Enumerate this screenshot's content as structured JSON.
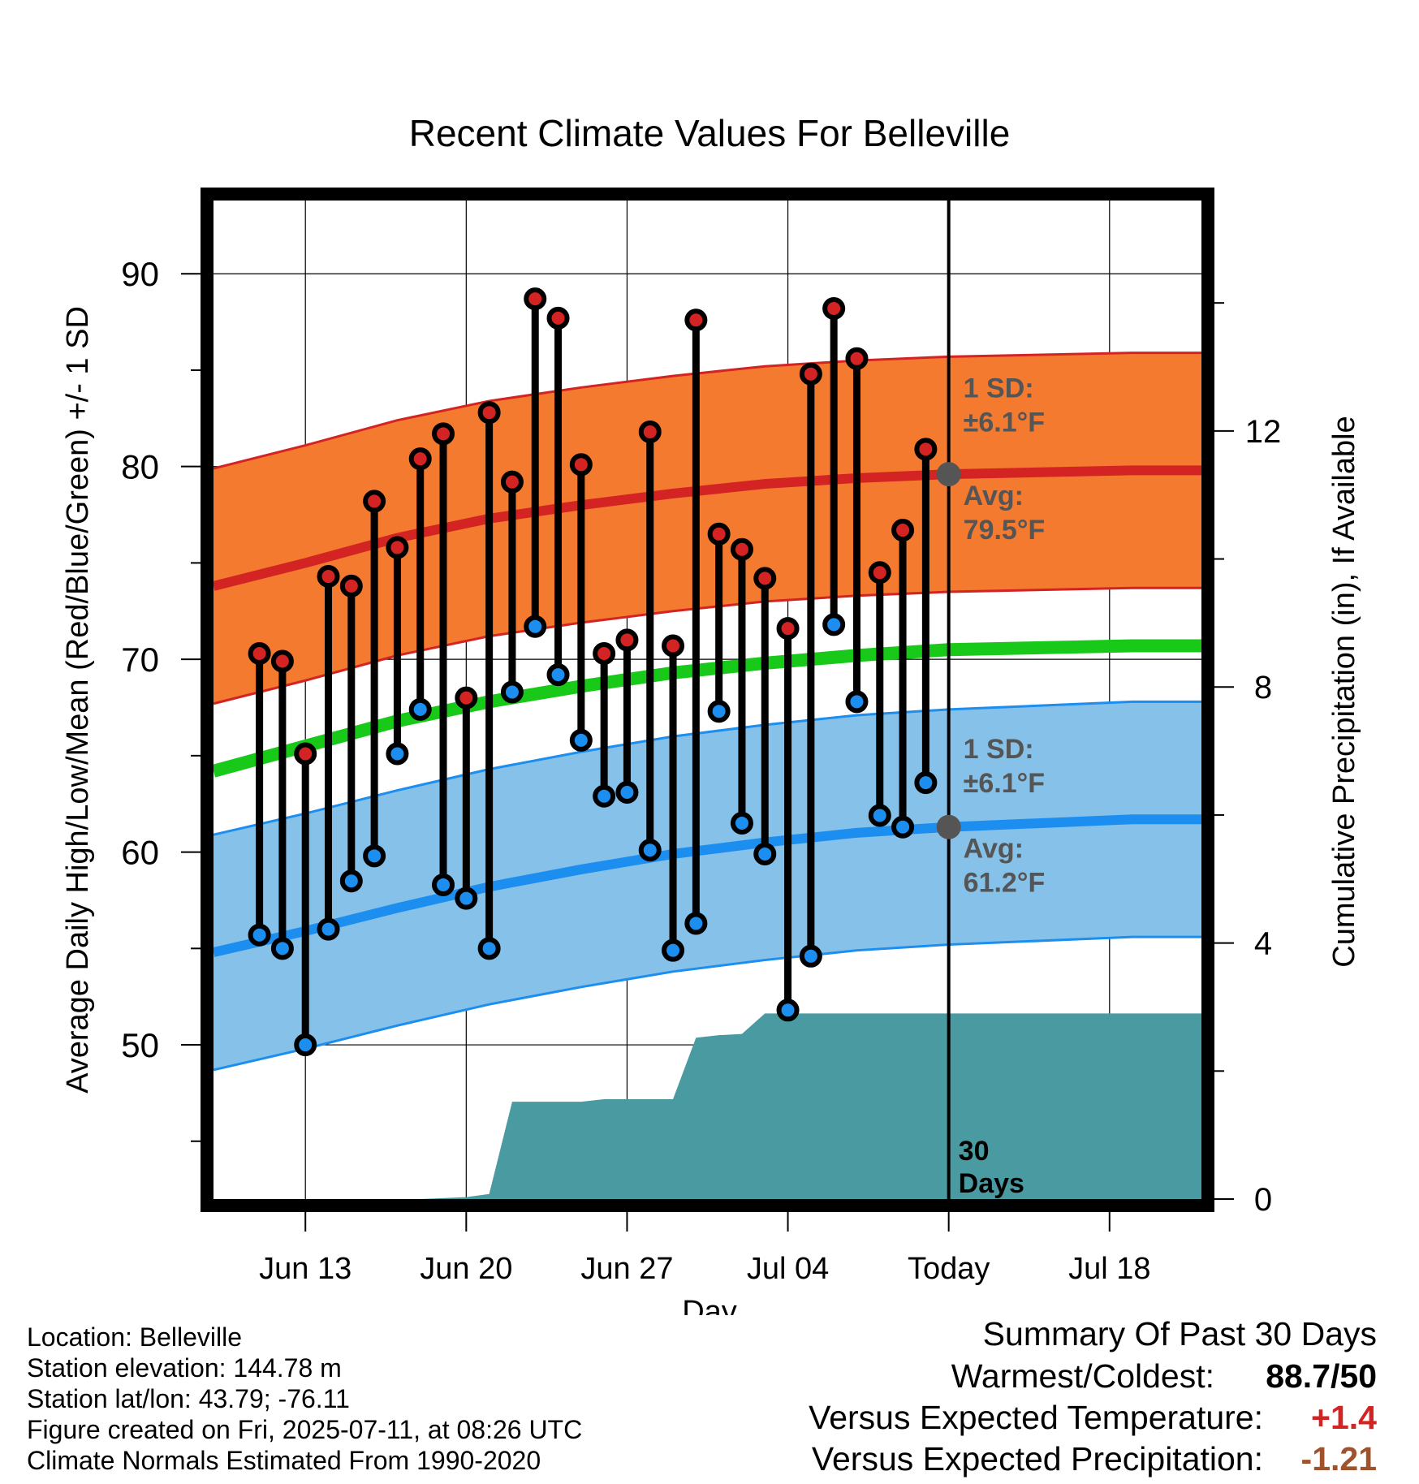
{
  "chart_data": {
    "type": "line",
    "title": "Recent Climate Values For Belleville",
    "xlabel": "Day",
    "ylabel": "Average Daily High/Low/Mean (Red/Blue/Green) +/- 1 SD",
    "y2label": "Cumulative Precipitation (in), If Available",
    "ylim": [
      42,
      93.8
    ],
    "y2lim": [
      0,
      15.6
    ],
    "yticks": [
      50,
      60,
      70,
      80,
      90
    ],
    "y2ticks": [
      0,
      4,
      8,
      12
    ],
    "xlim": [
      "2025-06-09",
      "2025-07-22"
    ],
    "xticks": [
      {
        "date": "2025-06-13",
        "label": "Jun 13"
      },
      {
        "date": "2025-06-20",
        "label": "Jun 20"
      },
      {
        "date": "2025-06-27",
        "label": "Jun 27"
      },
      {
        "date": "2025-07-04",
        "label": "Jul 04"
      },
      {
        "date": "2025-07-11",
        "label": "Today"
      },
      {
        "date": "2025-07-18",
        "label": "Jul 18"
      }
    ],
    "grid": true,
    "dates": [
      "2025-06-11",
      "2025-06-12",
      "2025-06-13",
      "2025-06-14",
      "2025-06-15",
      "2025-06-16",
      "2025-06-17",
      "2025-06-18",
      "2025-06-19",
      "2025-06-20",
      "2025-06-21",
      "2025-06-22",
      "2025-06-23",
      "2025-06-24",
      "2025-06-25",
      "2025-06-26",
      "2025-06-27",
      "2025-06-28",
      "2025-06-29",
      "2025-06-30",
      "2025-07-01",
      "2025-07-02",
      "2025-07-03",
      "2025-07-04",
      "2025-07-05",
      "2025-07-06",
      "2025-07-07",
      "2025-07-08",
      "2025-07-09",
      "2025-07-10"
    ],
    "daily_high": [
      70.3,
      69.9,
      65.1,
      74.3,
      73.8,
      78.2,
      75.8,
      80.4,
      81.7,
      68.0,
      82.8,
      79.2,
      88.7,
      87.7,
      80.1,
      70.3,
      71.0,
      81.8,
      70.7,
      87.6,
      76.5,
      75.7,
      74.2,
      71.6,
      84.8,
      88.2,
      85.6,
      74.5,
      76.7,
      80.9
    ],
    "daily_low": [
      55.7,
      55.0,
      50.0,
      56.0,
      58.5,
      59.8,
      65.1,
      67.4,
      58.3,
      57.6,
      55.0,
      68.3,
      71.7,
      69.2,
      65.8,
      62.9,
      63.1,
      60.1,
      54.9,
      56.3,
      67.3,
      61.5,
      59.9,
      51.8,
      54.6,
      71.8,
      67.8,
      61.9,
      61.3,
      63.6
    ],
    "normal_dates": [
      "2025-06-09",
      "2025-06-13",
      "2025-06-17",
      "2025-06-21",
      "2025-06-25",
      "2025-06-29",
      "2025-07-03",
      "2025-07-07",
      "2025-07-11",
      "2025-07-15",
      "2025-07-19",
      "2025-07-22"
    ],
    "normal_high": [
      73.8,
      75.0,
      76.3,
      77.3,
      78.0,
      78.6,
      79.1,
      79.4,
      79.6,
      79.7,
      79.8,
      79.8
    ],
    "normal_low": [
      54.8,
      55.9,
      57.1,
      58.2,
      59.1,
      59.9,
      60.5,
      61.0,
      61.3,
      61.5,
      61.7,
      61.7
    ],
    "normal_mean": [
      64.2,
      65.5,
      66.8,
      67.8,
      68.6,
      69.3,
      69.8,
      70.2,
      70.5,
      70.6,
      70.7,
      70.7
    ],
    "sd": 6.1,
    "precip_dates": [
      "2025-06-09",
      "2025-06-18",
      "2025-06-20",
      "2025-06-21",
      "2025-06-22",
      "2025-06-25",
      "2025-06-26",
      "2025-06-29",
      "2025-06-30",
      "2025-07-01",
      "2025-07-02",
      "2025-07-03",
      "2025-07-11",
      "2025-07-22"
    ],
    "precip_cum": [
      0.0,
      0.0,
      0.03,
      0.08,
      1.52,
      1.52,
      1.56,
      1.56,
      2.52,
      2.56,
      2.58,
      2.9,
      2.9,
      2.9
    ],
    "series": [
      {
        "name": "1 SD:",
        "sublabel": "±6.1°F",
        "which": "high"
      },
      {
        "name": "Avg:",
        "sublabel": "79.5°F",
        "which": "high"
      },
      {
        "name": "1 SD:",
        "sublabel": "±6.1°F",
        "which": "low"
      },
      {
        "name": "Avg:",
        "sublabel": "61.2°F",
        "which": "low"
      }
    ],
    "labels": {
      "high_sd_title": "1 SD:",
      "high_sd_value": "±6.1°F",
      "high_avg_title": "Avg:",
      "high_avg_value": "79.5°F",
      "low_sd_title": "1 SD:",
      "low_sd_value": "±6.1°F",
      "low_avg_title": "Avg:",
      "low_avg_value": "61.2°F",
      "precip_label_1": "30",
      "precip_label_2": "Days"
    }
  },
  "colors": {
    "high_band": "#f47a30",
    "high_line": "#d32423",
    "low_band": "#85c1e8",
    "low_line": "#1c8ef0",
    "mean_line": "#19c919",
    "precip": "#4a9aa1",
    "annotation": "#555555",
    "high_dot": "#d32423",
    "low_dot": "#1c8ef0"
  },
  "info": {
    "location": "Location: Belleville",
    "elevation": "Station elevation: 144.78 m",
    "latlon": "Station lat/lon: 43.79; -76.11",
    "created": "Figure created on Fri, 2025-07-11, at 08:26 UTC",
    "normals": "Climate Normals Estimated From 1990-2020"
  },
  "summary": {
    "title": "Summary Of Past 30 Days",
    "warm_label": "Warmest/Coldest:",
    "warm_value": "88.7/50",
    "temp_label": "Versus Expected Temperature:",
    "temp_value": "+1.4",
    "temp_color": "#d32423",
    "precip_label": "Versus Expected Precipitation:",
    "precip_value": "-1.21",
    "precip_color": "#a0522d"
  }
}
